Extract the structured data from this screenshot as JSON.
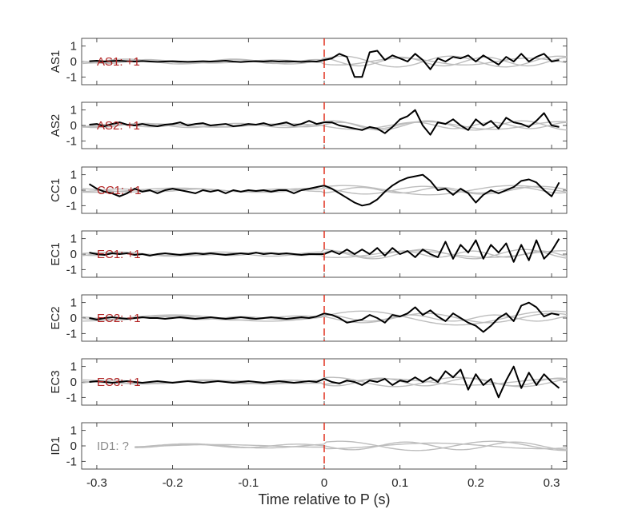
{
  "chart_data": {
    "type": "line",
    "xlabel": "Time relative to P (s)",
    "xlim": [
      -0.32,
      0.32
    ],
    "xticks": [
      -0.3,
      -0.2,
      -0.1,
      0,
      0.1,
      0.2,
      0.3
    ],
    "xtick_labels": [
      "-0.3",
      "-0.2",
      "-0.1",
      "0",
      "0.1",
      "0.2",
      "0.3"
    ],
    "ylim": [
      -1.5,
      1.5
    ],
    "yticks": [
      -1,
      0,
      1
    ],
    "ytick_labels": [
      "-1",
      "0",
      "1"
    ],
    "marker_line": {
      "x": 0,
      "color": "#e0301e",
      "style": "dashed"
    },
    "colors": {
      "main": "#000000",
      "background": "#bdbdbd",
      "label_red": "#b22222",
      "label_gray": "#8c8c8c",
      "axis": "#262626"
    },
    "panels": [
      {
        "ylabel": "AS1",
        "label": "AS1: +1",
        "label_color": "#b22222",
        "black_x": [
          -0.31,
          -0.3,
          -0.29,
          -0.28,
          -0.27,
          -0.26,
          -0.25,
          -0.24,
          -0.23,
          -0.22,
          -0.21,
          -0.2,
          -0.19,
          -0.18,
          -0.17,
          -0.16,
          -0.15,
          -0.14,
          -0.13,
          -0.12,
          -0.11,
          -0.1,
          -0.09,
          -0.08,
          -0.07,
          -0.06,
          -0.05,
          -0.04,
          -0.03,
          -0.02,
          -0.01,
          0,
          0.01,
          0.02,
          0.03,
          0.04,
          0.05,
          0.06,
          0.07,
          0.08,
          0.09,
          0.1,
          0.11,
          0.12,
          0.13,
          0.14,
          0.15,
          0.16,
          0.17,
          0.18,
          0.19,
          0.2,
          0.21,
          0.22,
          0.23,
          0.24,
          0.25,
          0.26,
          0.27,
          0.28,
          0.29,
          0.3,
          0.31
        ],
        "black_y": [
          0.02,
          0.05,
          0.0,
          0.03,
          0.05,
          0.02,
          0.0,
          0.03,
          0.0,
          -0.02,
          0.0,
          0.02,
          0.0,
          -0.02,
          0.0,
          0.02,
          0.0,
          0.02,
          0.05,
          0.0,
          -0.03,
          0.0,
          0.02,
          0.0,
          0.03,
          0.0,
          0.02,
          0.0,
          -0.02,
          0.02,
          0.0,
          0.1,
          0.2,
          0.5,
          0.3,
          -1.0,
          -1.0,
          0.6,
          0.7,
          0.1,
          0.4,
          0.2,
          0.0,
          0.5,
          0.1,
          -0.5,
          0.2,
          0.0,
          0.3,
          0.2,
          0.4,
          0.0,
          0.4,
          0.1,
          -0.2,
          0.3,
          0.0,
          0.5,
          0.0,
          0.3,
          0.5,
          0.0,
          0.1
        ],
        "gray": [
          {
            "amp": 0.35,
            "freq": 7.0,
            "phase": 0.5
          },
          {
            "amp": 0.28,
            "freq": 9.0,
            "phase": 2.1
          },
          {
            "amp": 0.22,
            "freq": 6.0,
            "phase": 4.0
          }
        ]
      },
      {
        "ylabel": "AS2",
        "label": "AS2: +1",
        "label_color": "#b22222",
        "black_x": [
          -0.31,
          -0.3,
          -0.29,
          -0.28,
          -0.27,
          -0.26,
          -0.25,
          -0.24,
          -0.23,
          -0.22,
          -0.21,
          -0.2,
          -0.19,
          -0.18,
          -0.17,
          -0.16,
          -0.15,
          -0.14,
          -0.13,
          -0.12,
          -0.11,
          -0.1,
          -0.09,
          -0.08,
          -0.07,
          -0.06,
          -0.05,
          -0.04,
          -0.03,
          -0.02,
          -0.01,
          0,
          0.01,
          0.02,
          0.03,
          0.04,
          0.05,
          0.06,
          0.07,
          0.08,
          0.09,
          0.1,
          0.11,
          0.12,
          0.13,
          0.14,
          0.15,
          0.16,
          0.17,
          0.18,
          0.19,
          0.2,
          0.21,
          0.22,
          0.23,
          0.24,
          0.25,
          0.26,
          0.27,
          0.28,
          0.29,
          0.3,
          0.31
        ],
        "black_y": [
          0.05,
          0.1,
          -0.05,
          0.1,
          0.2,
          0.05,
          0.0,
          0.1,
          0.0,
          -0.05,
          0.05,
          0.1,
          0.2,
          0.0,
          0.1,
          0.15,
          0.0,
          0.05,
          0.1,
          -0.05,
          0.0,
          0.1,
          0.05,
          0.15,
          0.0,
          0.1,
          0.2,
          0.0,
          0.1,
          0.3,
          0.1,
          0.2,
          0.2,
          0.0,
          -0.1,
          -0.2,
          -0.3,
          -0.1,
          -0.2,
          -0.5,
          -0.1,
          0.4,
          0.6,
          1.0,
          0.0,
          -0.6,
          0.2,
          0.1,
          0.4,
          0.0,
          -0.3,
          0.4,
          0.0,
          0.3,
          -0.2,
          0.5,
          0.2,
          0.1,
          -0.1,
          0.3,
          0.8,
          0.0,
          -0.1
        ],
        "gray": [
          {
            "amp": 0.3,
            "freq": 8.0,
            "phase": 1.0
          },
          {
            "amp": 0.25,
            "freq": 5.5,
            "phase": 3.3
          },
          {
            "amp": 0.2,
            "freq": 10.0,
            "phase": 0.2
          }
        ]
      },
      {
        "ylabel": "CC1",
        "label": "CC1: +1",
        "label_color": "#b22222",
        "black_x": [
          -0.31,
          -0.3,
          -0.29,
          -0.28,
          -0.27,
          -0.26,
          -0.25,
          -0.24,
          -0.23,
          -0.22,
          -0.21,
          -0.2,
          -0.19,
          -0.18,
          -0.17,
          -0.16,
          -0.15,
          -0.14,
          -0.13,
          -0.12,
          -0.11,
          -0.1,
          -0.09,
          -0.08,
          -0.07,
          -0.06,
          -0.05,
          -0.04,
          -0.03,
          -0.02,
          -0.01,
          0,
          0.01,
          0.02,
          0.03,
          0.04,
          0.05,
          0.06,
          0.07,
          0.08,
          0.09,
          0.1,
          0.11,
          0.12,
          0.13,
          0.14,
          0.15,
          0.16,
          0.17,
          0.18,
          0.19,
          0.2,
          0.21,
          0.22,
          0.23,
          0.24,
          0.25,
          0.26,
          0.27,
          0.28,
          0.29,
          0.3,
          0.31
        ],
        "black_y": [
          0.4,
          0.1,
          -0.1,
          -0.2,
          -0.4,
          -0.2,
          0.1,
          -0.1,
          0.0,
          -0.2,
          0.0,
          0.1,
          0.0,
          -0.1,
          -0.2,
          0.0,
          -0.1,
          0.0,
          -0.2,
          0.0,
          -0.1,
          0.0,
          -0.05,
          0.0,
          -0.1,
          0.0,
          0.0,
          -0.2,
          0.0,
          0.1,
          0.2,
          0.3,
          0.1,
          -0.2,
          -0.5,
          -0.8,
          -1.0,
          -0.9,
          -0.6,
          -0.1,
          0.3,
          0.6,
          0.8,
          0.9,
          1.0,
          0.6,
          0.0,
          0.1,
          -0.3,
          0.1,
          -0.2,
          -0.8,
          -0.3,
          0.0,
          -0.2,
          0.0,
          0.2,
          0.6,
          0.7,
          0.5,
          0.0,
          -0.4,
          0.5
        ],
        "gray": [
          {
            "amp": 0.25,
            "freq": 6.5,
            "phase": 2.5
          },
          {
            "amp": 0.3,
            "freq": 4.5,
            "phase": 0.8
          },
          {
            "amp": 0.18,
            "freq": 9.5,
            "phase": 5.0
          }
        ]
      },
      {
        "ylabel": "EC1",
        "label": "EC1: +1",
        "label_color": "#b22222",
        "black_x": [
          -0.31,
          -0.3,
          -0.29,
          -0.28,
          -0.27,
          -0.26,
          -0.25,
          -0.24,
          -0.23,
          -0.22,
          -0.21,
          -0.2,
          -0.19,
          -0.18,
          -0.17,
          -0.16,
          -0.15,
          -0.14,
          -0.13,
          -0.12,
          -0.11,
          -0.1,
          -0.09,
          -0.08,
          -0.07,
          -0.06,
          -0.05,
          -0.04,
          -0.03,
          -0.02,
          -0.01,
          0,
          0.01,
          0.02,
          0.03,
          0.04,
          0.05,
          0.06,
          0.07,
          0.08,
          0.09,
          0.1,
          0.11,
          0.12,
          0.13,
          0.14,
          0.15,
          0.16,
          0.17,
          0.18,
          0.19,
          0.2,
          0.21,
          0.22,
          0.23,
          0.24,
          0.25,
          0.26,
          0.27,
          0.28,
          0.29,
          0.3,
          0.31
        ],
        "black_y": [
          0.1,
          0.0,
          -0.05,
          0.05,
          0.0,
          0.05,
          -0.05,
          0.0,
          -0.1,
          0.0,
          0.05,
          0.0,
          -0.05,
          0.0,
          0.05,
          0.0,
          0.05,
          0.0,
          -0.05,
          0.0,
          0.05,
          0.0,
          0.1,
          0.0,
          0.05,
          0.0,
          0.05,
          0.0,
          -0.05,
          0.0,
          0.0,
          0.0,
          0.2,
          0.0,
          0.3,
          0.0,
          0.3,
          0.0,
          0.4,
          -0.1,
          0.4,
          0.0,
          0.2,
          -0.2,
          0.3,
          0.0,
          -0.2,
          0.8,
          -0.3,
          0.6,
          0.1,
          0.9,
          -0.3,
          0.6,
          0.1,
          0.7,
          -0.5,
          0.6,
          -0.4,
          0.9,
          -0.3,
          0.2,
          1.0
        ],
        "gray": [
          {
            "amp": 0.3,
            "freq": 7.5,
            "phase": 1.7
          },
          {
            "amp": 0.22,
            "freq": 5.0,
            "phase": 4.2
          },
          {
            "amp": 0.2,
            "freq": 11.0,
            "phase": 0.6
          }
        ]
      },
      {
        "ylabel": "EC2",
        "label": "EC2: +1",
        "label_color": "#b22222",
        "black_x": [
          -0.31,
          -0.3,
          -0.29,
          -0.28,
          -0.27,
          -0.26,
          -0.25,
          -0.24,
          -0.23,
          -0.22,
          -0.21,
          -0.2,
          -0.19,
          -0.18,
          -0.17,
          -0.16,
          -0.15,
          -0.14,
          -0.13,
          -0.12,
          -0.11,
          -0.1,
          -0.09,
          -0.08,
          -0.07,
          -0.06,
          -0.05,
          -0.04,
          -0.03,
          -0.02,
          -0.01,
          0,
          0.01,
          0.02,
          0.03,
          0.04,
          0.05,
          0.06,
          0.07,
          0.08,
          0.09,
          0.1,
          0.11,
          0.12,
          0.13,
          0.14,
          0.15,
          0.16,
          0.17,
          0.18,
          0.19,
          0.2,
          0.21,
          0.22,
          0.23,
          0.24,
          0.25,
          0.26,
          0.27,
          0.28,
          0.29,
          0.3,
          0.31
        ],
        "black_y": [
          0.0,
          -0.1,
          0.0,
          0.05,
          0.0,
          -0.05,
          0.0,
          0.05,
          0.0,
          0.0,
          -0.05,
          0.0,
          0.05,
          0.0,
          -0.05,
          0.0,
          0.05,
          0.0,
          -0.05,
          0.0,
          0.05,
          0.0,
          -0.05,
          0.0,
          0.05,
          0.0,
          -0.05,
          0.0,
          0.05,
          0.0,
          0.1,
          0.3,
          0.2,
          0.0,
          -0.3,
          -0.2,
          -0.1,
          0.2,
          0.0,
          -0.3,
          0.2,
          0.1,
          0.3,
          0.7,
          0.2,
          0.5,
          0.1,
          -0.2,
          0.3,
          0.0,
          -0.3,
          -0.5,
          -0.9,
          -0.5,
          0.0,
          0.3,
          -0.2,
          0.8,
          1.0,
          0.7,
          0.1,
          0.3,
          0.2
        ],
        "gray": [
          {
            "amp": 0.45,
            "freq": 4.0,
            "phase": 0.3
          },
          {
            "amp": 0.3,
            "freq": 6.0,
            "phase": 2.8
          },
          {
            "amp": 0.2,
            "freq": 9.0,
            "phase": 1.4
          }
        ]
      },
      {
        "ylabel": "EC3",
        "label": "EC3: +1",
        "label_color": "#b22222",
        "black_x": [
          -0.31,
          -0.3,
          -0.29,
          -0.28,
          -0.27,
          -0.26,
          -0.25,
          -0.24,
          -0.23,
          -0.22,
          -0.21,
          -0.2,
          -0.19,
          -0.18,
          -0.17,
          -0.16,
          -0.15,
          -0.14,
          -0.13,
          -0.12,
          -0.11,
          -0.1,
          -0.09,
          -0.08,
          -0.07,
          -0.06,
          -0.05,
          -0.04,
          -0.03,
          -0.02,
          -0.01,
          0,
          0.01,
          0.02,
          0.03,
          0.04,
          0.05,
          0.06,
          0.07,
          0.08,
          0.09,
          0.1,
          0.11,
          0.12,
          0.13,
          0.14,
          0.15,
          0.16,
          0.17,
          0.18,
          0.19,
          0.2,
          0.21,
          0.22,
          0.23,
          0.24,
          0.25,
          0.26,
          0.27,
          0.28,
          0.29,
          0.3,
          0.31
        ],
        "black_y": [
          0.0,
          0.05,
          0.0,
          -0.05,
          0.0,
          0.05,
          0.0,
          -0.05,
          0.0,
          0.05,
          0.0,
          -0.05,
          0.0,
          0.05,
          0.0,
          -0.05,
          0.0,
          0.05,
          0.0,
          -0.05,
          0.0,
          0.05,
          0.0,
          -0.05,
          0.0,
          0.05,
          0.0,
          -0.05,
          0.0,
          0.05,
          0.0,
          0.2,
          0.0,
          -0.1,
          0.1,
          0.0,
          -0.2,
          0.1,
          0.0,
          0.2,
          -0.2,
          0.1,
          0.0,
          0.3,
          0.0,
          0.3,
          0.0,
          0.7,
          0.3,
          0.8,
          -0.5,
          0.5,
          -0.2,
          0.2,
          -1.0,
          0.1,
          1.0,
          -0.4,
          0.6,
          -0.2,
          0.5,
          0.0,
          -0.4
        ],
        "gray": [
          {
            "amp": 0.3,
            "freq": 6.0,
            "phase": 1.2
          },
          {
            "amp": 0.25,
            "freq": 8.5,
            "phase": 3.9
          },
          {
            "amp": 0.2,
            "freq": 4.5,
            "phase": 5.5
          }
        ]
      },
      {
        "ylabel": "ID1",
        "label": "ID1: ?",
        "label_color": "#8c8c8c",
        "black_x": [],
        "black_y": [],
        "gray": [
          {
            "amp": 0.3,
            "freq": 5.0,
            "phase": 0.9
          },
          {
            "amp": 0.25,
            "freq": 7.0,
            "phase": 3.1
          },
          {
            "amp": 0.18,
            "freq": 3.5,
            "phase": 4.7
          }
        ]
      }
    ]
  }
}
